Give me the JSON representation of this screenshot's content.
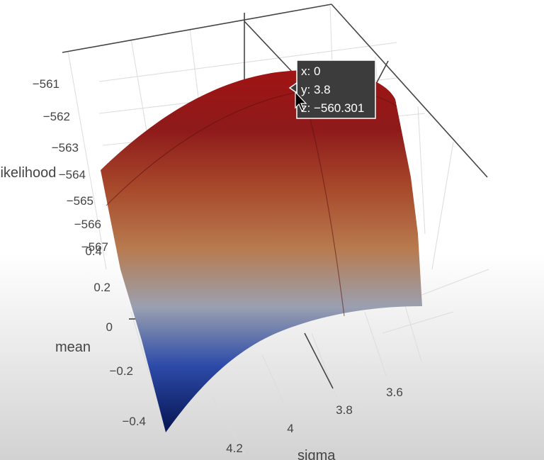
{
  "chart_data": {
    "type": "surface",
    "z_axis": {
      "title": "likelihood",
      "ticks": [
        "−561",
        "−562",
        "−563",
        "−564",
        "−565",
        "−566",
        "−567"
      ]
    },
    "mean_axis": {
      "title": "mean",
      "ticks": [
        "0.4",
        "0.2",
        "0",
        "−0.2",
        "−0.4"
      ]
    },
    "sigma_axis": {
      "title": "sigma",
      "ticks": [
        "3.6",
        "3.8",
        "4",
        "4.2"
      ]
    },
    "colorscale": [
      "#0a1a5a",
      "#2c4aa8",
      "#9aa0b0",
      "#b87a4e",
      "#a84a2c",
      "#8e1a1a",
      "#a01414"
    ],
    "tooltip": {
      "x": "x: 0",
      "y": "y: 3.8",
      "z": "z: −560.301"
    }
  }
}
